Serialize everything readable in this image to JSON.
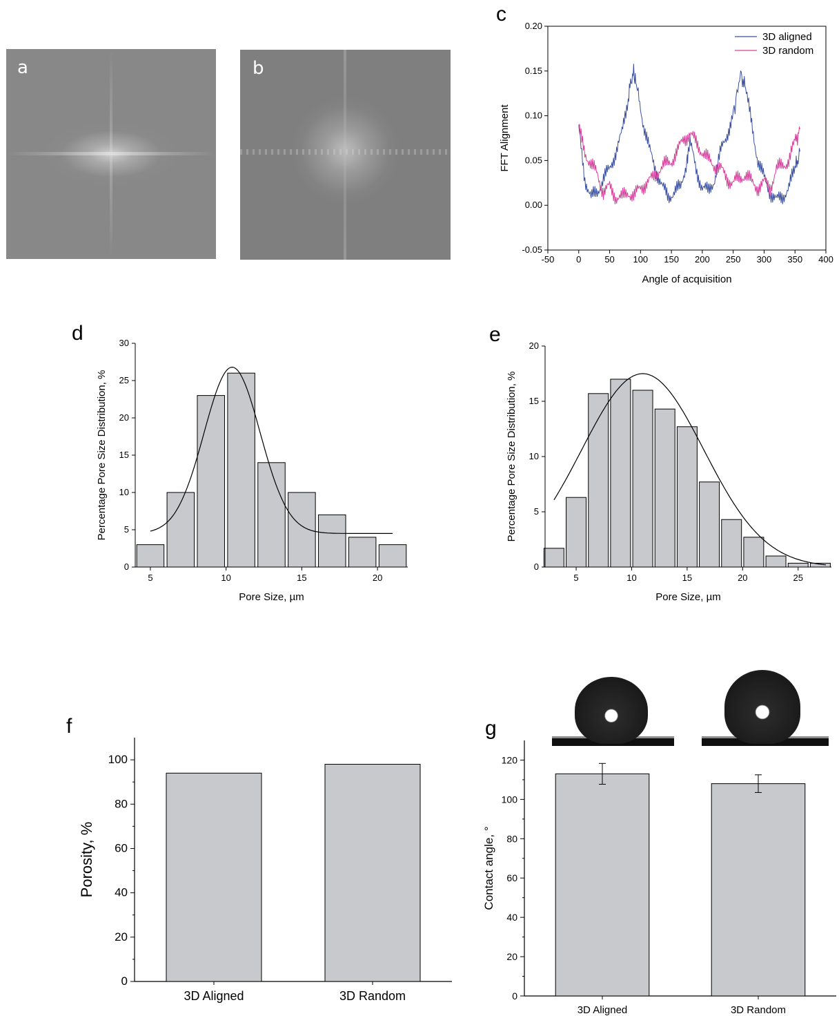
{
  "panels": {
    "a": {
      "label": "a"
    },
    "b": {
      "label": "b"
    },
    "c": {
      "label": "c"
    },
    "d": {
      "label": "d"
    },
    "e": {
      "label": "e"
    },
    "f": {
      "label": "f"
    },
    "g": {
      "label": "g"
    }
  },
  "chart_data": [
    {
      "id": "c",
      "type": "line",
      "xlabel": "Angle of acquisition",
      "ylabel": "FFT Alignment",
      "xlim": [
        -50,
        400
      ],
      "ylim": [
        -0.05,
        0.2
      ],
      "xticks": [
        -50,
        0,
        50,
        100,
        150,
        200,
        250,
        300,
        350,
        400
      ],
      "yticks": [
        -0.05,
        0.0,
        0.05,
        0.1,
        0.15,
        0.2
      ],
      "ytick_labels": [
        "-0.05",
        "0.00",
        "0.05",
        "0.10",
        "0.15",
        "0.20"
      ],
      "legend": "top-right",
      "series": [
        {
          "name": "3D aligned",
          "color": "#3a4fa0",
          "x": [
            0,
            10,
            20,
            30,
            40,
            50,
            60,
            70,
            80,
            88,
            95,
            105,
            115,
            125,
            135,
            145,
            155,
            165,
            175,
            180,
            190,
            200,
            210,
            220,
            230,
            240,
            250,
            262,
            270,
            280,
            290,
            300,
            310,
            320,
            330,
            340,
            350,
            358
          ],
          "y": [
            0.085,
            0.03,
            0.008,
            0.015,
            0.03,
            0.04,
            0.06,
            0.08,
            0.12,
            0.15,
            0.13,
            0.09,
            0.06,
            0.04,
            0.02,
            0.01,
            0.015,
            0.02,
            0.05,
            0.07,
            0.04,
            0.02,
            0.015,
            0.03,
            0.06,
            0.08,
            0.1,
            0.148,
            0.13,
            0.09,
            0.05,
            0.03,
            0.015,
            0.005,
            0.01,
            0.02,
            0.04,
            0.06
          ]
        },
        {
          "name": "3D random",
          "color": "#d4409a",
          "x": [
            0,
            10,
            20,
            30,
            40,
            50,
            60,
            70,
            80,
            90,
            100,
            110,
            120,
            130,
            140,
            150,
            160,
            170,
            180,
            190,
            200,
            210,
            220,
            230,
            240,
            250,
            260,
            270,
            280,
            290,
            300,
            310,
            320,
            330,
            340,
            350,
            358
          ],
          "y": [
            0.085,
            0.06,
            0.045,
            0.035,
            0.015,
            0.02,
            0.01,
            0.008,
            0.015,
            0.01,
            0.02,
            0.025,
            0.03,
            0.04,
            0.045,
            0.05,
            0.06,
            0.075,
            0.08,
            0.07,
            0.06,
            0.05,
            0.045,
            0.04,
            0.03,
            0.025,
            0.03,
            0.035,
            0.025,
            0.02,
            0.025,
            0.02,
            0.04,
            0.045,
            0.05,
            0.07,
            0.085
          ]
        }
      ]
    },
    {
      "id": "d",
      "type": "bar",
      "xlabel": "Pore Size, µm",
      "ylabel": "Percentage Pore Size Distribution, %",
      "xlim": [
        4.0,
        22.0
      ],
      "ylim": [
        0,
        30
      ],
      "xticks": [
        5,
        10,
        15,
        20
      ],
      "yticks": [
        0,
        5,
        10,
        15,
        20,
        25,
        30
      ],
      "bin_width": 2,
      "bins_center": [
        5,
        7,
        9,
        11,
        13,
        15,
        17,
        19,
        21
      ],
      "values": [
        3,
        10,
        23,
        26,
        14,
        10,
        7,
        4,
        3
      ],
      "fit": {
        "type": "gauss",
        "center": 10.4,
        "amplitude": 22.3,
        "sigma": 1.85,
        "offset": 4.5,
        "x_range": [
          5,
          21
        ]
      }
    },
    {
      "id": "e",
      "type": "bar",
      "xlabel": "Pore Size, µm",
      "ylabel": "Percentage Pore Size Distribution, %",
      "xlim": [
        2.2,
        28.0
      ],
      "ylim": [
        0,
        20
      ],
      "xticks": [
        5,
        10,
        15,
        20,
        25
      ],
      "yticks": [
        0,
        5,
        10,
        15,
        20
      ],
      "bin_width": 2,
      "bins_center": [
        3,
        5,
        7,
        9,
        11,
        13,
        15,
        17,
        19,
        21,
        23,
        25,
        27
      ],
      "values": [
        1.7,
        6.3,
        15.7,
        17.0,
        16.0,
        14.3,
        12.7,
        7.7,
        4.3,
        2.7,
        1.0,
        0.35,
        0.35
      ],
      "fit": {
        "type": "gauss",
        "center": 11,
        "amplitude": 17.5,
        "sigma": 5.5,
        "offset": 0,
        "x_range": [
          3,
          27.5
        ]
      }
    },
    {
      "id": "f",
      "type": "bar",
      "categories": [
        "3D Aligned",
        "3D Random"
      ],
      "values": [
        94,
        98
      ],
      "ylabel": "Porosity, %",
      "ylim": [
        0,
        110
      ],
      "yticks": [
        0,
        20,
        40,
        60,
        80,
        100
      ]
    },
    {
      "id": "g",
      "type": "bar",
      "categories": [
        "3D Aligned",
        "3D Random"
      ],
      "values": [
        113,
        108
      ],
      "errors": [
        5.3,
        4.5
      ],
      "ylabel": "Contact angle, °",
      "ylim": [
        0,
        130
      ],
      "yticks": [
        0,
        20,
        40,
        60,
        80,
        100,
        120
      ]
    }
  ]
}
